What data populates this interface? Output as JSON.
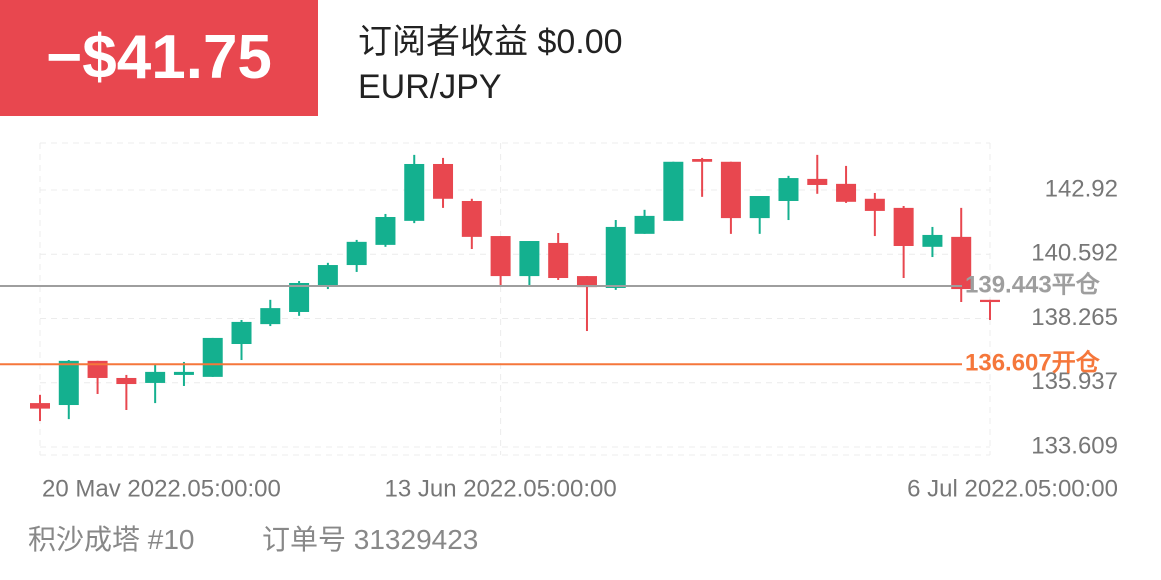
{
  "header": {
    "pnl": "−$41.75",
    "title": "订阅者收益 $0.00",
    "symbol": "EUR/JPY"
  },
  "chart_data": {
    "type": "candlestick",
    "categories": [
      "20 Mav 2022.05:00:00",
      null,
      null,
      null,
      null,
      null,
      null,
      null,
      null,
      null,
      null,
      null,
      null,
      null,
      null,
      null,
      "13 Jun 2022.05:00:00",
      null,
      null,
      null,
      null,
      null,
      null,
      null,
      null,
      null,
      null,
      null,
      null,
      null,
      null,
      null,
      null,
      "6 Jul 2022.05:00:00"
    ],
    "open": [
      135.2,
      135.13,
      136.73,
      136.11,
      135.93,
      136.22,
      136.15,
      137.34,
      138.06,
      138.5,
      139.41,
      140.2,
      140.93,
      141.8,
      143.86,
      142.52,
      141.25,
      139.8,
      141.0,
      139.8,
      139.37,
      141.33,
      141.8,
      144.04,
      143.94,
      141.9,
      142.52,
      143.32,
      143.14,
      142.6,
      142.27,
      140.86,
      141.22,
      138.94
    ],
    "high": [
      135.5,
      136.76,
      136.73,
      136.22,
      136.58,
      136.69,
      137.56,
      138.21,
      138.94,
      139.62,
      140.28,
      141.11,
      142.05,
      144.19,
      144.08,
      142.6,
      141.25,
      141.07,
      141.36,
      139.8,
      141.83,
      142.2,
      143.94,
      144.08,
      143.94,
      142.7,
      143.43,
      144.19,
      143.79,
      142.81,
      142.34,
      141.58,
      142.27,
      138.94
    ],
    "low": [
      134.55,
      134.62,
      135.53,
      134.95,
      135.2,
      135.82,
      136.15,
      136.76,
      137.99,
      138.36,
      139.33,
      139.95,
      140.86,
      141.72,
      142.27,
      140.78,
      139.44,
      139.44,
      139.66,
      137.81,
      139.3,
      141.33,
      141.8,
      142.67,
      141.33,
      141.33,
      141.83,
      142.78,
      142.45,
      141.25,
      139.73,
      140.49,
      138.86,
      138.21
    ],
    "close": [
      135.0,
      136.73,
      136.11,
      135.89,
      136.33,
      136.33,
      137.56,
      138.14,
      138.64,
      139.55,
      140.2,
      141.04,
      141.94,
      143.86,
      142.6,
      141.22,
      139.8,
      141.07,
      139.73,
      139.4,
      141.58,
      141.98,
      143.94,
      143.94,
      141.9,
      142.7,
      143.35,
      143.1,
      142.49,
      142.16,
      140.89,
      141.29,
      139.33,
      138.86
    ],
    "up_color": "#14b08f",
    "down_color": "#e8474f",
    "ylim": [
      133.32,
      144.62
    ],
    "yticks": [
      133.609,
      135.937,
      138.265,
      140.592,
      142.92
    ],
    "grid": true,
    "lines": [
      {
        "value": 139.443,
        "label": "139.443平仓",
        "color": "#9e9e9e"
      },
      {
        "value": 136.607,
        "label": "136.607开仓",
        "color": "#f5773b"
      }
    ]
  },
  "footer": {
    "name": "积沙成塔 #10",
    "order": "订单号 31329423"
  }
}
